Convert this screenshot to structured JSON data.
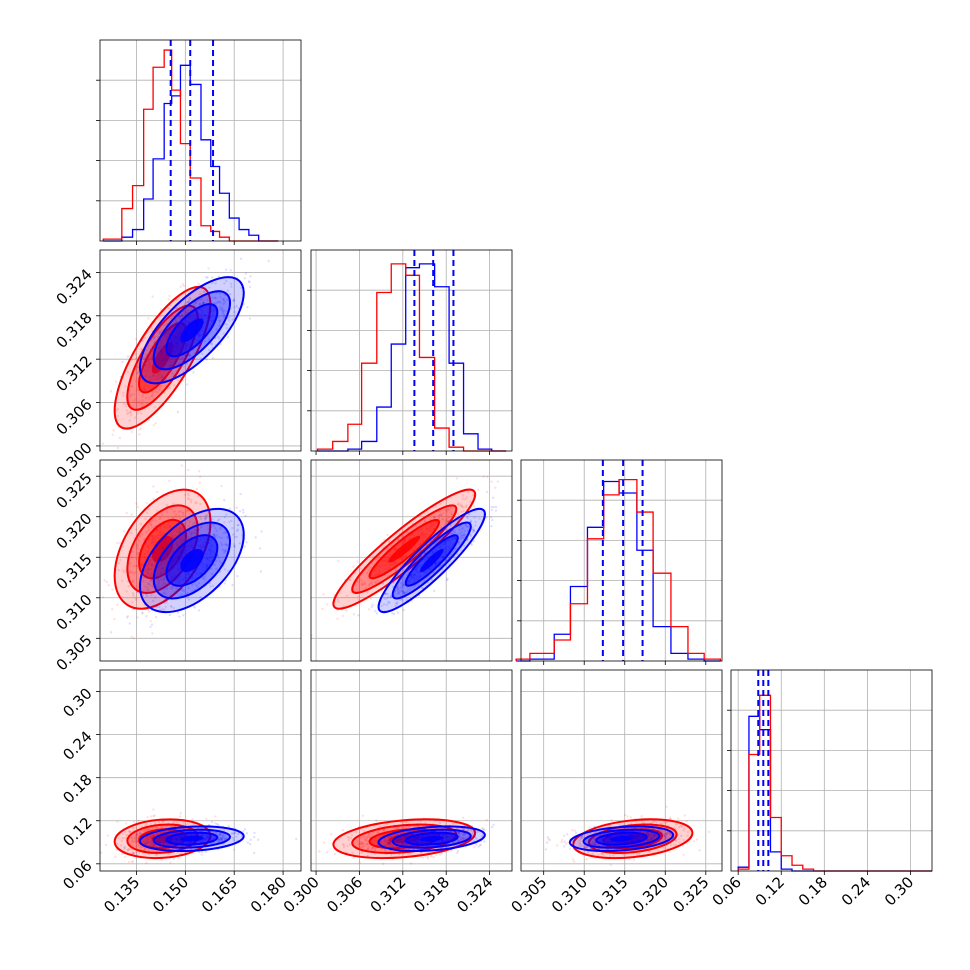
{
  "chart_data": {
    "type": "corner",
    "title": "",
    "grid": true,
    "colors": {
      "red": "#ff0000",
      "blue": "#0000ff"
    },
    "series": [
      {
        "color": "red",
        "mean": [
          0.143,
          0.3122,
          0.316,
          0.095
        ],
        "sd": [
          0.006,
          0.004,
          0.003,
          0.011
        ],
        "corr": {
          "1_0": 0.75,
          "2_0": 0.45,
          "2_1": 0.92,
          "3_0": 0.15,
          "3_1": 0.3,
          "3_2": 0.3
        }
      },
      {
        "color": "blue",
        "mean": [
          0.152,
          0.316,
          0.3146,
          0.095
        ],
        "sd": [
          0.0065,
          0.003,
          0.0026,
          0.007
        ],
        "corr": {
          "1_0": 0.7,
          "2_0": 0.5,
          "2_1": 0.9,
          "3_0": 0.2,
          "3_1": 0.3,
          "3_2": 0.3
        }
      }
    ],
    "quantile_lines": [
      {
        "param": 0,
        "values": [
          0.1455,
          0.1515,
          0.1585
        ]
      },
      {
        "param": 1,
        "values": [
          0.3136,
          0.3162,
          0.319
        ]
      },
      {
        "param": 2,
        "values": [
          0.3123,
          0.3148,
          0.3172
        ]
      },
      {
        "param": 3,
        "values": [
          0.088,
          0.095,
          0.102
        ]
      }
    ],
    "histograms": [
      {
        "param": 0,
        "edges": [
          0.1248,
          0.1305,
          0.1338,
          0.1372,
          0.1401,
          0.1435,
          0.1458,
          0.1485,
          0.1515,
          0.1548,
          0.1578,
          0.1605,
          0.1635,
          0.1665,
          0.1695,
          0.1725,
          0.1755,
          0.1785
        ],
        "red": [
          0.01,
          0.17,
          0.29,
          0.69,
          0.91,
          1.0,
          0.79,
          0.51,
          0.33,
          0.08,
          0.05,
          0.02,
          0.0,
          0.0,
          0.0,
          0.0,
          0.0
        ],
        "blue": [
          0.0,
          0.02,
          0.06,
          0.22,
          0.43,
          0.72,
          0.76,
          0.92,
          0.82,
          0.53,
          0.39,
          0.25,
          0.12,
          0.06,
          0.03,
          0.0,
          0.0
        ]
      },
      {
        "param": 1,
        "edges": [
          0.3002,
          0.3023,
          0.3044,
          0.3063,
          0.3084,
          0.3104,
          0.3124,
          0.3143,
          0.3164,
          0.3184,
          0.3204,
          0.3224,
          0.3243,
          0.3263
        ],
        "red": [
          0.01,
          0.05,
          0.14,
          0.46,
          0.83,
          0.98,
          0.92,
          0.49,
          0.12,
          0.02,
          0.0,
          0.0,
          0.0
        ],
        "blue": [
          0.0,
          0.0,
          0.01,
          0.05,
          0.23,
          0.56,
          0.96,
          0.98,
          0.86,
          0.46,
          0.09,
          0.01,
          0.0
        ]
      },
      {
        "param": 2,
        "edges": [
          0.3016,
          0.3033,
          0.3063,
          0.3083,
          0.3104,
          0.3124,
          0.3143,
          0.3165,
          0.3185,
          0.3207,
          0.3228,
          0.3248,
          0.3268
        ],
        "red": [
          0.01,
          0.04,
          0.11,
          0.3,
          0.64,
          0.87,
          0.95,
          0.78,
          0.46,
          0.18,
          0.04,
          0.01
        ],
        "blue": [
          0.0,
          0.01,
          0.14,
          0.39,
          0.7,
          0.94,
          0.88,
          0.58,
          0.18,
          0.04,
          0.01,
          0.0
        ]
      },
      {
        "param": 3,
        "edges": [
          0.06,
          0.075,
          0.09,
          0.105,
          0.12,
          0.135,
          0.15,
          0.165,
          0.18,
          0.195,
          0.21,
          0.33
        ],
        "red": [
          0.01,
          0.61,
          0.92,
          0.28,
          0.08,
          0.03,
          0.01,
          0.0,
          0.0,
          0.0,
          0.0
        ],
        "blue": [
          0.02,
          0.81,
          0.74,
          0.1,
          0.01,
          0.0,
          0.0,
          0.0,
          0.0,
          0.0,
          0.0
        ]
      }
    ],
    "params": [
      {
        "index": 0,
        "range": [
          0.1238,
          0.1855
        ],
        "ticks": [
          0.135,
          0.15,
          0.165,
          0.18
        ],
        "tick_labels": [
          "0.135",
          "0.150",
          "0.165",
          "0.180"
        ]
      },
      {
        "index": 1,
        "range": [
          0.2993,
          0.3271
        ],
        "ticks": [
          0.3,
          0.306,
          0.312,
          0.318,
          0.324
        ],
        "tick_labels": [
          "0.300",
          "0.306",
          "0.312",
          "0.318",
          "0.324"
        ]
      },
      {
        "index": 2,
        "range": [
          0.3022,
          0.327
        ],
        "ticks": [
          0.305,
          0.31,
          0.315,
          0.32,
          0.325
        ],
        "tick_labels": [
          "0.305",
          "0.310",
          "0.315",
          "0.320",
          "0.325"
        ]
      },
      {
        "index": 3,
        "range": [
          0.05,
          0.33
        ],
        "ticks": [
          0.06,
          0.12,
          0.18,
          0.24,
          0.3
        ],
        "tick_labels": [
          "0.06",
          "0.12",
          "0.18",
          "0.24",
          "0.30"
        ]
      }
    ]
  }
}
